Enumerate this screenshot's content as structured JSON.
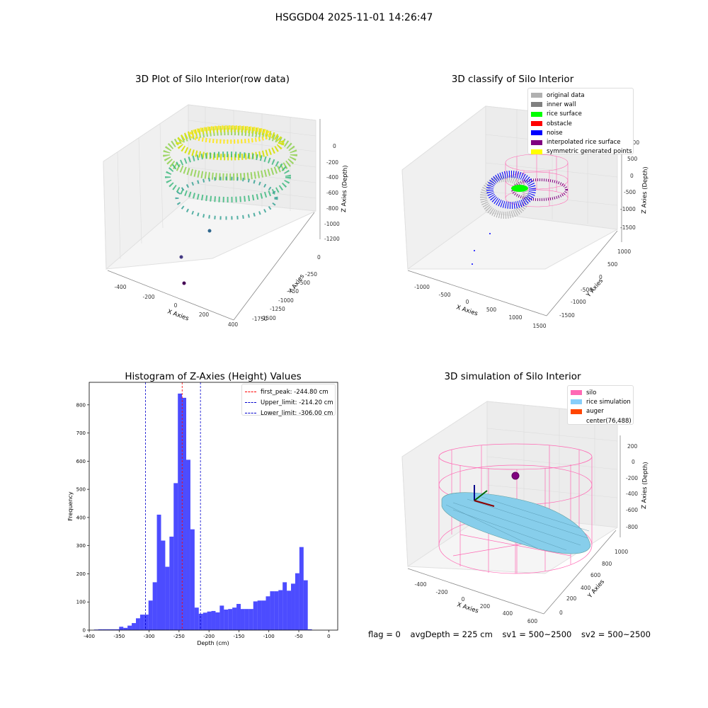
{
  "suptitle": "HSGGD04 2025-11-01 14:26:47",
  "panels": {
    "raw": {
      "title": "3D Plot of Silo Interior(row data)",
      "xlabel": "X Axies",
      "ylabel": "Y Axies",
      "zlabel": "Z Axies (Depth)",
      "xticks": [
        "-400",
        "-200",
        "0",
        "200",
        "400"
      ],
      "yticks": [
        "0",
        "-250",
        "-500",
        "-750",
        "-1000",
        "-1250",
        "-1500",
        "-1750"
      ],
      "zticks": [
        "0",
        "-200",
        "-400",
        "-600",
        "-800",
        "-1000",
        "-1200"
      ]
    },
    "classify": {
      "title": "3D classify of Silo Interior",
      "xlabel": "X Axies",
      "ylabel": "Y Axies",
      "zlabel": "Z Axies (Depth)",
      "xticks": [
        "-1000",
        "-500",
        "0",
        "500",
        "1000",
        "1500"
      ],
      "yticks": [
        "1000",
        "500",
        "0",
        "-500",
        "-1000",
        "-1500"
      ],
      "zticks": [
        "1000",
        "500",
        "0",
        "-500",
        "-1000",
        "-1500"
      ],
      "legend": [
        {
          "label": "original data",
          "color": "#b0b0b0"
        },
        {
          "label": "inner wall",
          "color": "#808080"
        },
        {
          "label": "rice surface",
          "color": "#00ff00"
        },
        {
          "label": "obstacle",
          "color": "#ff0000"
        },
        {
          "label": "noise",
          "color": "#0000ff"
        },
        {
          "label": "interpolated rice surface",
          "color": "#800080"
        },
        {
          "label": "symmetric generated points",
          "color": "#ffff00"
        }
      ]
    },
    "simulation": {
      "title": "3D simulation of Silo Interior",
      "xlabel": "X Axies",
      "ylabel": "Y Axies",
      "zlabel": "Z Axies (Depth)",
      "xticks": [
        "-400",
        "-200",
        "0",
        "200",
        "400",
        "600"
      ],
      "yticks": [
        "0",
        "200",
        "400",
        "600",
        "800",
        "1000"
      ],
      "zticks": [
        "200",
        "0",
        "-200",
        "-400",
        "-600",
        "-800"
      ],
      "legend": [
        {
          "label": "silo",
          "color": "#ff69b4"
        },
        {
          "label": "rice simulation",
          "color": "#87cefa"
        },
        {
          "label": "auger",
          "color": "#ff4500"
        },
        {
          "label": "center(76,488)",
          "color": ""
        }
      ]
    }
  },
  "chart_data": {
    "type": "bar",
    "title": "Histogram of Z-Axies (Height) Values",
    "xlabel": "Depth (cm)",
    "ylabel": "Frequency",
    "xlim": [
      -400,
      15
    ],
    "ylim": [
      0,
      880
    ],
    "xticks": [
      -400,
      -350,
      -300,
      -250,
      -200,
      -150,
      -100,
      -50,
      0
    ],
    "yticks": [
      0,
      100,
      200,
      300,
      400,
      500,
      600,
      700,
      800
    ],
    "bar_color": "#0000ff",
    "bin_edges": [
      -392,
      -385,
      -378,
      -371,
      -364,
      -357,
      -350,
      -343,
      -336,
      -329,
      -322,
      -315,
      -308,
      -301,
      -294,
      -287,
      -280,
      -273,
      -266,
      -259,
      -252,
      -245,
      -238,
      -231,
      -224,
      -217,
      -210,
      -203,
      -196,
      -189,
      -182,
      -175,
      -168,
      -161,
      -154,
      -147,
      -140,
      -133,
      -126,
      -119,
      -112,
      -105,
      -98,
      -91,
      -84,
      -77,
      -70,
      -63,
      -56,
      -49,
      -42,
      -35,
      -28,
      -21,
      -14,
      -7,
      0
    ],
    "values": [
      2,
      3,
      3,
      3,
      3,
      3,
      12,
      8,
      16,
      25,
      42,
      55,
      55,
      105,
      170,
      410,
      318,
      225,
      332,
      522,
      840,
      825,
      605,
      358,
      80,
      58,
      62,
      66,
      68,
      63,
      87,
      73,
      75,
      80,
      93,
      75,
      75,
      75,
      102,
      105,
      105,
      120,
      138,
      138,
      142,
      170,
      140,
      165,
      202,
      295,
      177,
      3,
      0,
      0,
      0,
      0
    ],
    "reference_lines": [
      {
        "label": "first_peak: -244.80 cm",
        "x": -244.8,
        "color": "#ff0000"
      },
      {
        "label": "Upper_limit: -214.20 cm",
        "x": -214.2,
        "color": "#0000cd"
      },
      {
        "label": "Lower_limit: -306.00 cm",
        "x": -306.0,
        "color": "#0000cd"
      }
    ],
    "legend_position": "top-right"
  },
  "footer": {
    "flag": "flag = 0",
    "avg_depth": "avgDepth = 225 cm",
    "sv1": "sv1 = 500~2500",
    "sv2": "sv2 = 500~2500"
  }
}
